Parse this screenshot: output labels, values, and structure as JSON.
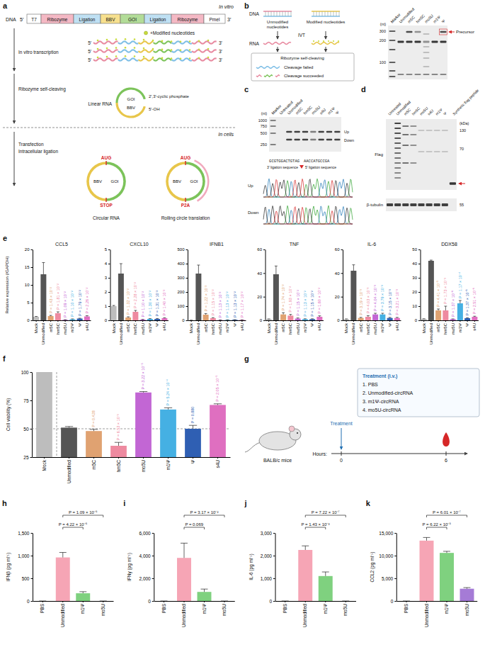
{
  "panel_letters": [
    "a",
    "b",
    "c",
    "d",
    "e",
    "f",
    "g",
    "h",
    "i",
    "j",
    "k"
  ],
  "diagrams": {
    "a": {
      "dna_label": "DNA",
      "setting_top": "In vitro",
      "construct": [
        "T7",
        "Ribozyme",
        "Ligation",
        "BBV",
        "GOI",
        "Ligation",
        "Ribozyme",
        "PmeI"
      ],
      "five_prime": "5′",
      "three_prime": "3′",
      "ivt": "In vitro transcription",
      "modified": "+Modified nucleotides",
      "cleaving": "Ribozyme self-cleaving",
      "linear": "Linear RNA",
      "goi": "GOI",
      "bbv": "BBV",
      "cyclic": "2′,3′-cyclic phosphate",
      "oh": "5′-OH",
      "transfection": "Transfection",
      "ligation": "Intracellular ligation",
      "setting_bottom": "In cells",
      "start": "AUG",
      "stop": "STOP",
      "p2a": "P2A",
      "circ_label": "Circular RNA",
      "rolling_label": "Rolling circle translation"
    },
    "b": {
      "dna_label": "DNA",
      "unmodified": "Unmodified nucleotides",
      "modified": "Modified nucleotides",
      "ivt": "IVT",
      "rna_label": "RNA",
      "cleaving": "Ribozyme self-cleaving",
      "failed": "Cleavage failed",
      "succeeded": "Cleavage succeeded",
      "lanes": [
        "Marker",
        "Unmodified",
        "m5C",
        "hm5C",
        "mo5U",
        "m1Ψ",
        "Ψ"
      ],
      "unit": "(nt)",
      "size_ticks": [
        300,
        200,
        100
      ],
      "precursor": "Precursor"
    },
    "c": {
      "lanes": [
        "Marker",
        "Untreated",
        "Unmodified",
        "m5C",
        "hm5C",
        "mo5U",
        "s4U",
        "m1Ψ",
        "Ψ"
      ],
      "unit": "(nt)",
      "size_ticks": [
        1000,
        750,
        500,
        250
      ],
      "up": "Up",
      "down": "Down",
      "seq_3": "GCGTGGACTGTAG",
      "seq_5": "AACCATGCCGA",
      "label_3": "3′ ligation sequence",
      "label_5": "5′ ligation sequence"
    },
    "d": {
      "lanes": [
        "Untreated",
        "Unmodified",
        "m5C",
        "hm5C",
        "mo5U",
        "s4U",
        "m1Ψ",
        "Ψ",
        "Synthetic flag peptide"
      ],
      "unit": "(kDa)",
      "size_ticks": [
        130,
        70,
        55
      ],
      "flag": "Flag",
      "tubulin": "β-tubulin"
    },
    "g": {
      "mouse": "BALB/c mice",
      "treatment": "Treatment",
      "box_title": "Treatment (i.v.)",
      "groups": [
        "1. PBS",
        "2. Unmodified-circRNA",
        "3. m1Ψ-circRNA",
        "4. mo5U-circRNA"
      ],
      "axis_label": "Hours:",
      "times": [
        0,
        6
      ]
    }
  },
  "chart_data": [
    {
      "type": "bar",
      "title": "CCL5",
      "y_label": "Relative expression (/GAPDH)",
      "categories": [
        "Mock",
        "Unmodified",
        "m5C",
        "hm5C",
        "mo5U",
        "m1Ψ",
        "Ψ",
        "s4U"
      ],
      "values": [
        1,
        13,
        1.2,
        2,
        0.15,
        0.3,
        0.5,
        1.1
      ],
      "errors": [
        0.1,
        3.3,
        0.2,
        0.4,
        0.05,
        0.1,
        0.1,
        0.2
      ],
      "colors": [
        "#bdbdbd",
        "#555555",
        "#e0a271",
        "#ee8aa0",
        "#c266d4",
        "#45b0e3",
        "#2f5fb3",
        "#df6fc0"
      ],
      "ylim": [
        0,
        20
      ],
      "yticks": [
        0,
        5,
        10,
        15,
        20
      ],
      "p_values": [
        null,
        null,
        "P = 1.43 × 10⁻²",
        "P = 1.81 × 10⁻²",
        "P = 1.09 × 10⁻²",
        "P = 1.10 × 10⁻²",
        "P = 1.79 × 10⁻²",
        "P = 2.26 × 10⁻²"
      ]
    },
    {
      "type": "bar",
      "title": "CXCL10",
      "categories": [
        "Mock",
        "Unmodified",
        "m5C",
        "hm5C",
        "mo5U",
        "m1Ψ",
        "Ψ",
        "s4U"
      ],
      "values": [
        1,
        3.3,
        0.2,
        0.6,
        0.05,
        0.1,
        0.1,
        0.15
      ],
      "errors": [
        0.05,
        0.7,
        0.05,
        0.1,
        0.02,
        0.02,
        0.03,
        0.03
      ],
      "colors": [
        "#bdbdbd",
        "#555555",
        "#e0a271",
        "#ee8aa0",
        "#c266d4",
        "#45b0e3",
        "#2f5fb3",
        "#df6fc0"
      ],
      "ylim": [
        0,
        5
      ],
      "yticks": [
        0,
        1,
        2,
        3,
        4,
        5
      ],
      "p_values": [
        null,
        null,
        "P = 1.32 × 10⁻²",
        "P = 2.28 × 10⁻²",
        "P = 1.10 × 10⁻²",
        "P = 1.30 × 10⁻²",
        "P = 1.31 × 10⁻²",
        "P = 1.40 × 10⁻²"
      ]
    },
    {
      "type": "bar",
      "title": "IFNB1",
      "categories": [
        "Mock",
        "Unmodified",
        "m5C",
        "hm5C",
        "mo5U",
        "m1Ψ",
        "Ψ",
        "s4U"
      ],
      "values": [
        1,
        330,
        40,
        15,
        2,
        3,
        4,
        3
      ],
      "errors": [
        0.2,
        60,
        8,
        4,
        1,
        1,
        1,
        1
      ],
      "colors": [
        "#bdbdbd",
        "#555555",
        "#e0a271",
        "#ee8aa0",
        "#c266d4",
        "#45b0e3",
        "#2f5fb3",
        "#df6fc0"
      ],
      "ylim": [
        0,
        500
      ],
      "yticks": [
        0,
        100,
        200,
        300,
        400,
        500
      ],
      "p_values": [
        null,
        null,
        "P = 1.22 × 10⁻²",
        "P = 1.15 × 10⁻²",
        "P = 1.13 × 10⁻²",
        "P = 1.13 × 10⁻²",
        "P = 1.13 × 10⁻²",
        "P = 1.17 × 10⁻²"
      ]
    },
    {
      "type": "bar",
      "title": "TNF",
      "categories": [
        "Mock",
        "Unmodified",
        "m5C",
        "hm5C",
        "mo5U",
        "m1Ψ",
        "Ψ",
        "s4U"
      ],
      "values": [
        1,
        39,
        5,
        4,
        1.5,
        1,
        1,
        3
      ],
      "errors": [
        0.2,
        7,
        1.5,
        1,
        0.5,
        0.3,
        0.3,
        0.8
      ],
      "colors": [
        "#bdbdbd",
        "#555555",
        "#e0a271",
        "#ee8aa0",
        "#c266d4",
        "#45b0e3",
        "#2f5fb3",
        "#df6fc0"
      ],
      "ylim": [
        0,
        60
      ],
      "yticks": [
        0,
        20,
        40,
        60
      ],
      "p_values": [
        null,
        null,
        "P = 1.74 × 10⁻²",
        "P = 1.93 × 10⁻²",
        "P = 1.15 × 10⁻²",
        "P = 1.13 × 10⁻²",
        "P = 1.15 × 10⁻²",
        "P = 1.60 × 10⁻²"
      ]
    },
    {
      "type": "bar",
      "title": "IL-6",
      "categories": [
        "Mock",
        "Unmodified",
        "m5C",
        "hm5C",
        "mo5U",
        "m1Ψ",
        "Ψ",
        "s4U"
      ],
      "values": [
        1,
        42,
        2,
        3,
        5,
        5,
        2,
        2
      ],
      "errors": [
        0.2,
        5,
        0.5,
        1,
        1,
        1,
        0.5,
        0.5
      ],
      "colors": [
        "#bdbdbd",
        "#555555",
        "#e0a271",
        "#ee8aa0",
        "#c266d4",
        "#45b0e3",
        "#2f5fb3",
        "#df6fc0"
      ],
      "ylim": [
        0,
        60
      ],
      "yticks": [
        0,
        20,
        40,
        60
      ],
      "p_values": [
        null,
        null,
        "P = 3.19 × 10⁻³",
        "P = 4.03 × 10⁻³",
        "P = 4.04 × 10⁻³",
        "P = 3.79 × 10⁻³",
        "P = 3.15 × 10⁻³",
        "P = 3.21 × 10⁻³"
      ]
    },
    {
      "type": "bar",
      "title": "DDX58",
      "categories": [
        "Mock",
        "Unmodified",
        "m5C",
        "hm5C",
        "mo5U",
        "m1Ψ",
        "Ψ",
        "s4U"
      ],
      "values": [
        1,
        42,
        7,
        7,
        0.8,
        12,
        1.5,
        2.5
      ],
      "errors": [
        0.1,
        0.5,
        1,
        3,
        0.2,
        2,
        0.3,
        0.4
      ],
      "colors": [
        "#bdbdbd",
        "#555555",
        "#e0a271",
        "#ee8aa0",
        "#c266d4",
        "#45b0e3",
        "#2f5fb3",
        "#df6fc0"
      ],
      "ylim": [
        0,
        50
      ],
      "yticks": [
        0,
        10,
        20,
        30,
        40,
        50
      ],
      "p_values": [
        null,
        null,
        "P = 4.41 × 10⁻⁵",
        "P = 1.73 × 10⁻³",
        "P = 1.37 × 10⁻⁶",
        "P = 1.17 × 10⁻⁴",
        "P = 1.37 × 10⁻⁶",
        "P = 2.51 × 10⁻⁶"
      ]
    },
    {
      "type": "bar",
      "y_label": "Cell viability (%)",
      "categories": [
        "Mock",
        "Unmodified",
        "m5C",
        "hm5C",
        "mo5U",
        "m1Ψ",
        "Ψ",
        "s4U"
      ],
      "values": [
        100,
        51,
        48,
        35,
        82,
        67,
        50,
        71
      ],
      "errors": [
        1,
        1,
        1.5,
        3,
        0.8,
        1.5,
        3,
        1
      ],
      "colors": [
        "#bdbdbd",
        "#555555",
        "#e0a271",
        "#ee8aa0",
        "#c266d4",
        "#45b0e3",
        "#2f5fb3",
        "#df6fc0"
      ],
      "ylim": [
        25,
        100
      ],
      "yticks": [
        25,
        50,
        75,
        100
      ],
      "reference_y": 50,
      "p_values": [
        null,
        null,
        "P = 0.428",
        "P = 6.53 × 10⁻³",
        "P = 3.22 × 10⁻⁵",
        "P = 5.24 × 10⁻⁴",
        "P = 0.880",
        "P = 2.05 × 10⁻⁵"
      ]
    },
    {
      "type": "bar",
      "y_label": "IFNβ (pg ml⁻¹)",
      "categories": [
        "PBS",
        "Unmodified",
        "m1Ψ",
        "mo5U"
      ],
      "values": [
        0,
        960,
        170,
        0
      ],
      "errors": [
        0,
        110,
        35,
        0
      ],
      "colors": [
        "#bdbdbd",
        "#f6a5b5",
        "#7fd17f",
        "#a57bd6"
      ],
      "ylim": [
        0,
        1500
      ],
      "yticks": [
        0,
        500,
        {
          "value": 1000,
          "label": "1,000"
        },
        {
          "value": 1500,
          "label": "1,500"
        }
      ],
      "comparisons": [
        {
          "groups": [
            1,
            2
          ],
          "label": "P = 4.22 × 10⁻⁵"
        },
        {
          "groups": [
            1,
            3
          ],
          "label": "P = 1.09 × 10⁻⁵"
        }
      ]
    },
    {
      "type": "bar",
      "y_label": "IFNγ (pg ml⁻¹)",
      "categories": [
        "PBS",
        "Unmodified",
        "m1Ψ",
        "mo5U"
      ],
      "values": [
        0,
        3800,
        800,
        0
      ],
      "errors": [
        0,
        1300,
        250,
        0
      ],
      "colors": [
        "#bdbdbd",
        "#f6a5b5",
        "#7fd17f",
        "#a57bd6"
      ],
      "ylim": [
        0,
        6000
      ],
      "yticks": [
        0,
        {
          "value": 2000,
          "label": "2,000"
        },
        {
          "value": 4000,
          "label": "4,000"
        },
        {
          "value": 6000,
          "label": "6,000"
        }
      ],
      "comparisons": [
        {
          "groups": [
            1,
            2
          ],
          "label": "P = 0.069"
        },
        {
          "groups": [
            1,
            3
          ],
          "label": "P = 3.17 × 10⁻²"
        }
      ]
    },
    {
      "type": "bar",
      "y_label": "IL-6 (pg ml⁻¹)",
      "categories": [
        "PBS",
        "Unmodified",
        "m1Ψ",
        "mo5U"
      ],
      "values": [
        0,
        2250,
        1100,
        0
      ],
      "errors": [
        0,
        180,
        180,
        0
      ],
      "colors": [
        "#bdbdbd",
        "#f6a5b5",
        "#7fd17f",
        "#a57bd6"
      ],
      "ylim": [
        0,
        3000
      ],
      "yticks": [
        0,
        {
          "value": 1000,
          "label": "1,000"
        },
        {
          "value": 2000,
          "label": "2,000"
        },
        {
          "value": 3000,
          "label": "3,000"
        }
      ],
      "comparisons": [
        {
          "groups": [
            1,
            2
          ],
          "label": "P = 1.43 × 10⁻³"
        },
        {
          "groups": [
            1,
            3
          ],
          "label": "P = 7.22 × 10⁻⁷"
        }
      ]
    },
    {
      "type": "bar",
      "y_label": "CCL2 (pg ml⁻¹)",
      "categories": [
        "PBS",
        "Unmodified",
        "m1Ψ",
        "mo5U"
      ],
      "values": [
        0,
        13300,
        10600,
        2700
      ],
      "errors": [
        0,
        700,
        350,
        250
      ],
      "colors": [
        "#bdbdbd",
        "#f6a5b5",
        "#7fd17f",
        "#a57bd6"
      ],
      "ylim": [
        0,
        15000
      ],
      "yticks": [
        0,
        {
          "value": 5000,
          "label": "5,000"
        },
        {
          "value": 10000,
          "label": "10,000"
        },
        {
          "value": 15000,
          "label": "15,000"
        }
      ],
      "comparisons": [
        {
          "groups": [
            1,
            2
          ],
          "label": "P = 6.22 × 10⁻⁵"
        },
        {
          "groups": [
            1,
            3
          ],
          "label": "P = 6.01 × 10⁻⁷"
        }
      ]
    }
  ]
}
